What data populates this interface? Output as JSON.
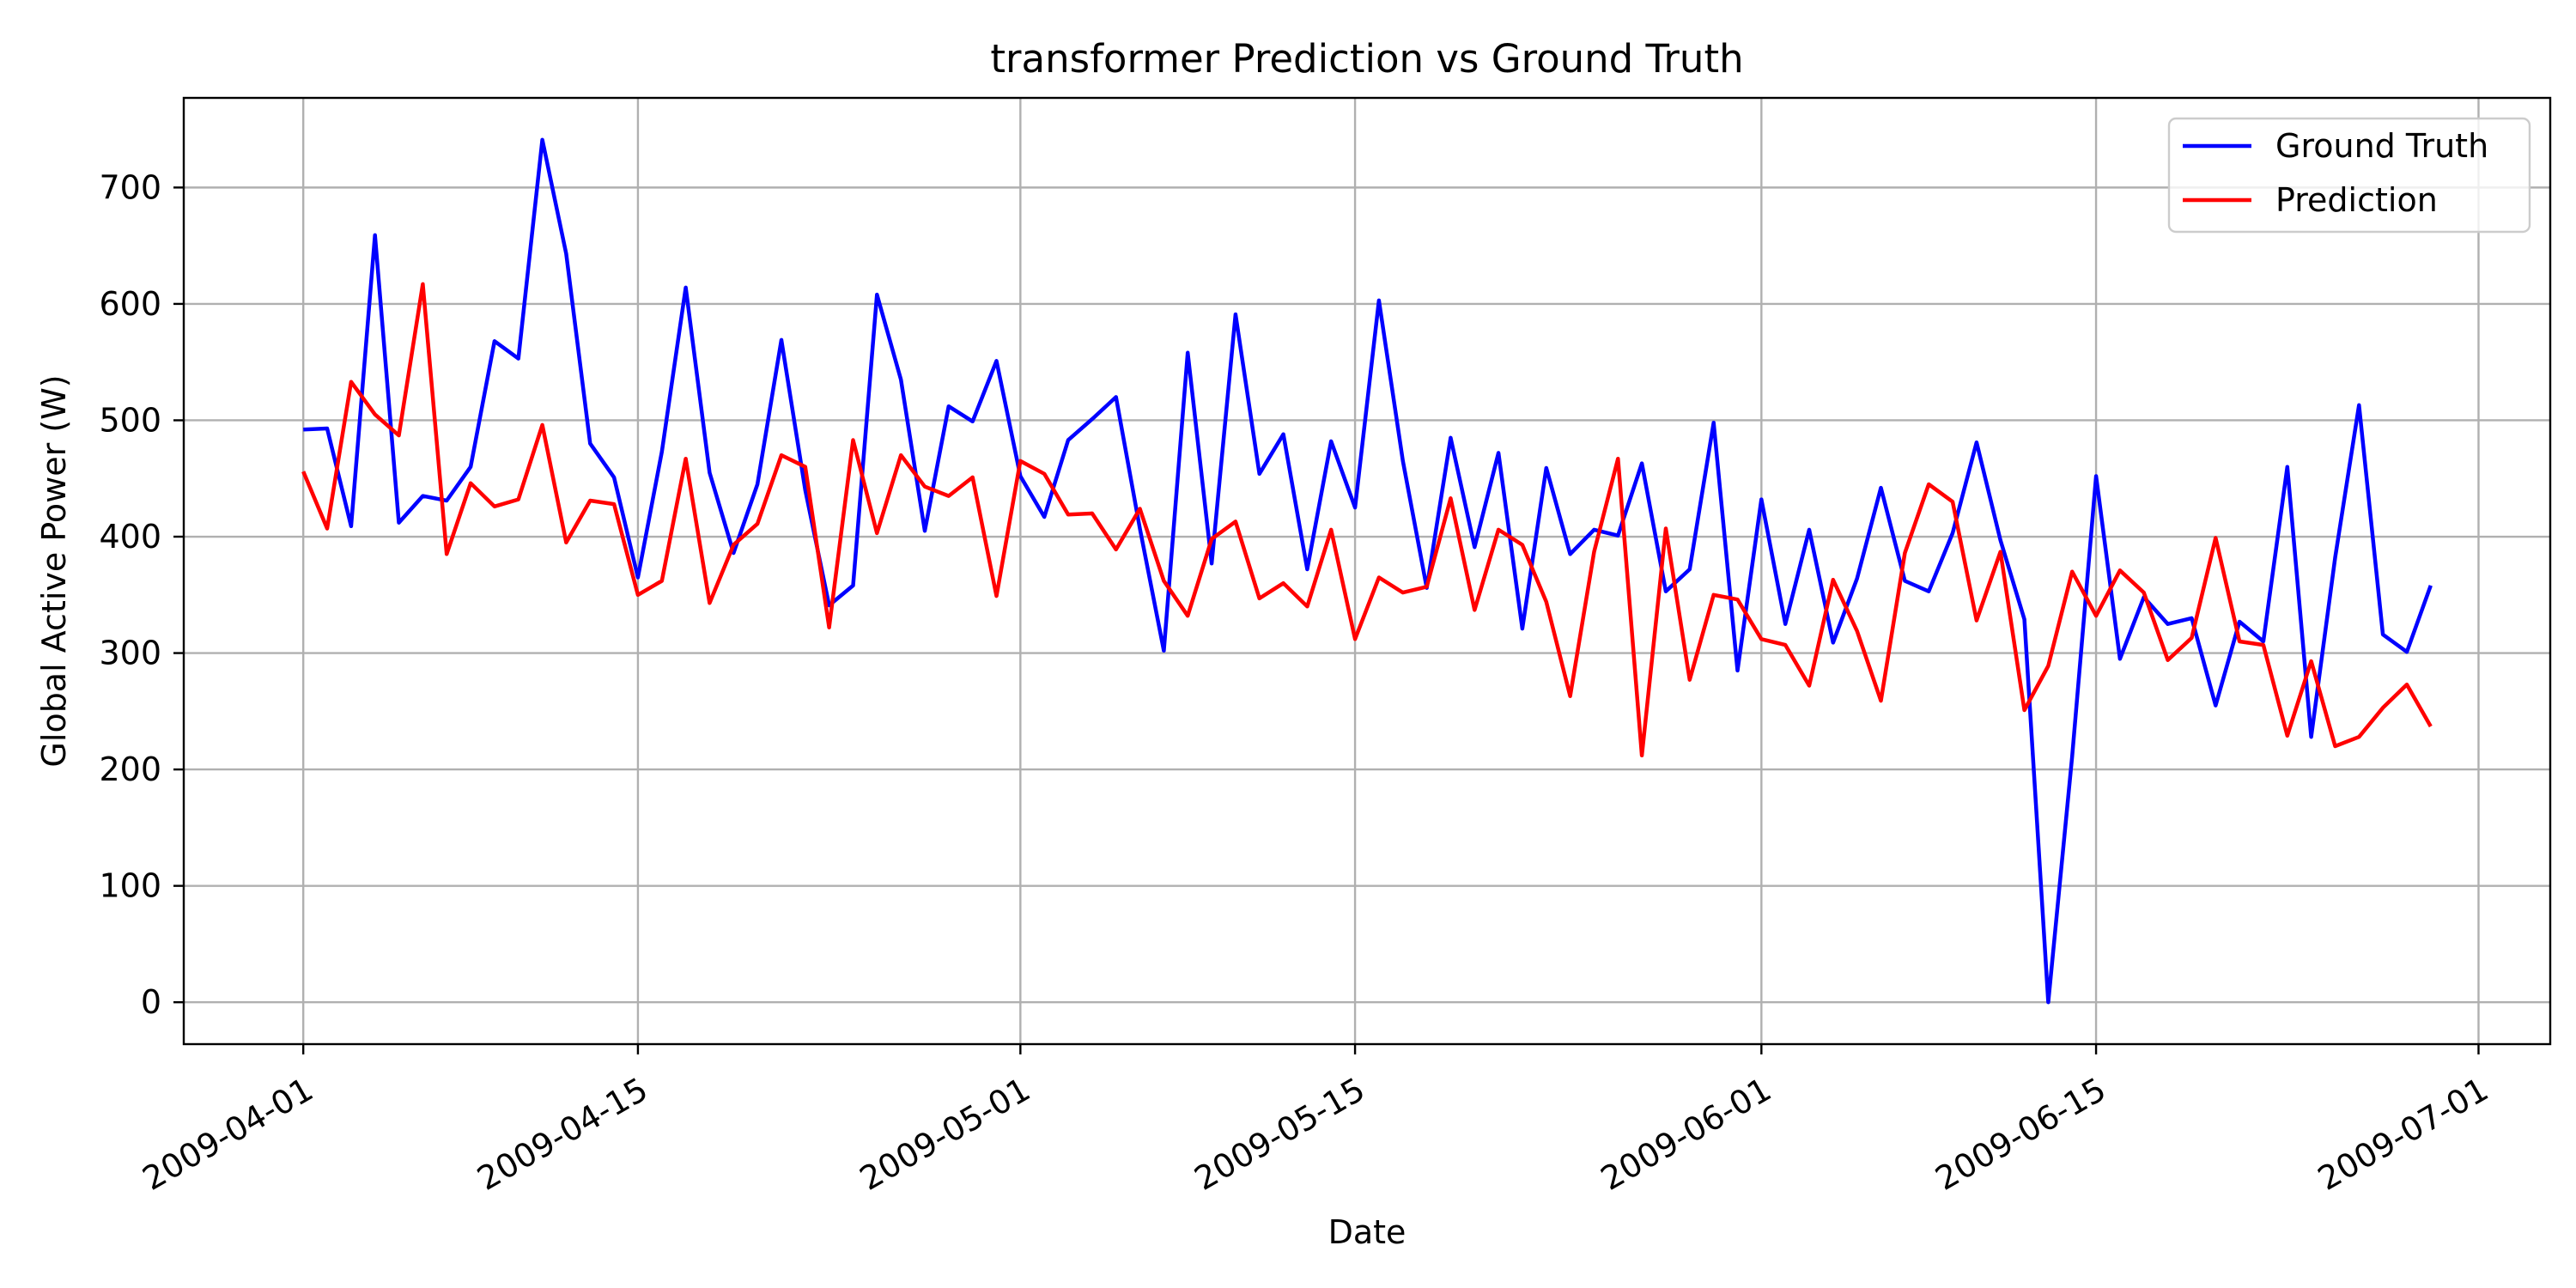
{
  "chart_data": {
    "type": "line",
    "title": "transformer Prediction vs Ground Truth",
    "xlabel": "Date",
    "ylabel": "Global Active Power (W)",
    "x_start": "2009-04-01",
    "x_end": "2009-06-30",
    "xlim": [
      "2009-03-27",
      "2009-07-04"
    ],
    "ylim": [
      -36,
      777
    ],
    "x_ticks": [
      "2009-04-01",
      "2009-04-15",
      "2009-05-01",
      "2009-05-15",
      "2009-06-01",
      "2009-06-15",
      "2009-07-01"
    ],
    "y_ticks": [
      0,
      100,
      200,
      300,
      400,
      500,
      600,
      700
    ],
    "grid": true,
    "legend_position": "top-right",
    "series": [
      {
        "name": "Ground Truth",
        "color": "#0000ff",
        "values": [
          492,
          493,
          409,
          659,
          412,
          435,
          431,
          460,
          568,
          553,
          741,
          643,
          480,
          451,
          365,
          473,
          614,
          455,
          386,
          445,
          569,
          440,
          341,
          358,
          608,
          535,
          405,
          512,
          499,
          551,
          452,
          417,
          483,
          501,
          520,
          407,
          302,
          558,
          377,
          591,
          454,
          488,
          372,
          482,
          425,
          603,
          465,
          356,
          485,
          391,
          472,
          321,
          459,
          385,
          406,
          401,
          463,
          353,
          372,
          498,
          285,
          432,
          325,
          406,
          309,
          364,
          442,
          362,
          353,
          403,
          481,
          397,
          329,
          0,
          211,
          452,
          295,
          348,
          325,
          330,
          255,
          327,
          310,
          460,
          228,
          382,
          513,
          316,
          301,
          358
        ]
      },
      {
        "name": "Prediction",
        "color": "#ff0000",
        "values": [
          456,
          407,
          533,
          505,
          487,
          617,
          385,
          446,
          426,
          432,
          496,
          395,
          431,
          428,
          350,
          362,
          467,
          343,
          393,
          411,
          470,
          460,
          322,
          483,
          403,
          470,
          443,
          435,
          451,
          349,
          465,
          454,
          419,
          420,
          389,
          424,
          362,
          332,
          398,
          413,
          347,
          360,
          340,
          406,
          312,
          365,
          352,
          357,
          433,
          337,
          406,
          393,
          344,
          263,
          387,
          467,
          212,
          407,
          277,
          350,
          346,
          312,
          307,
          272,
          363,
          319,
          259,
          386,
          445,
          430,
          328,
          387,
          251,
          289,
          370,
          332,
          371,
          352,
          294,
          313,
          399,
          310,
          307,
          229,
          293,
          220,
          228,
          253,
          273,
          237
        ]
      }
    ]
  }
}
